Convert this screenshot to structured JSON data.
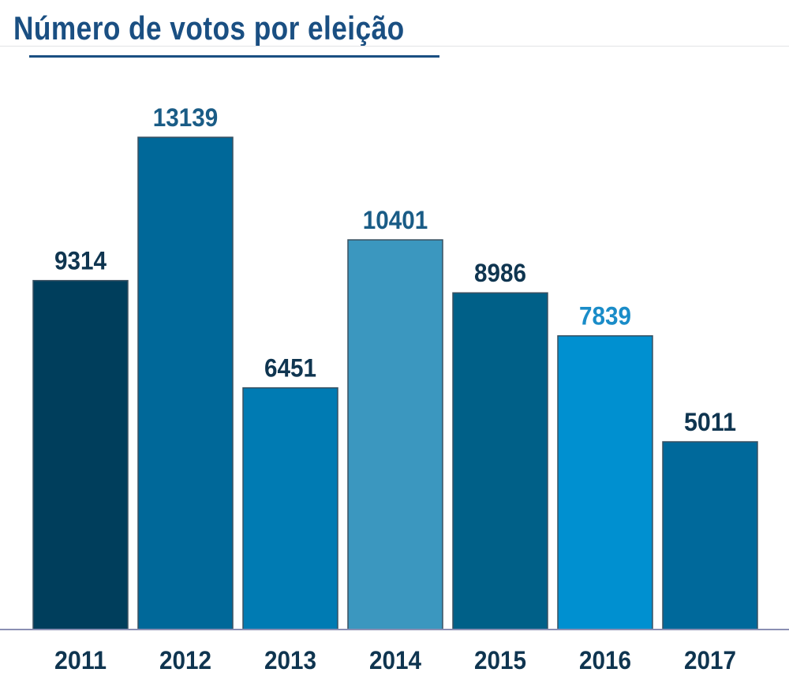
{
  "chart_data": {
    "type": "bar",
    "title": "Número de votos por eleição",
    "xlabel": "",
    "ylabel": "",
    "categories": [
      "2011",
      "2012",
      "2013",
      "2014",
      "2015",
      "2016",
      "2017"
    ],
    "values": [
      9314,
      13139,
      6451,
      10401,
      8986,
      7839,
      5011
    ],
    "ylim": [
      0,
      13139
    ],
    "grid": false,
    "legend": "none",
    "data_labels": true,
    "bar_colors": [
      "#003e5c",
      "#006899",
      "#007bb3",
      "#3b97bf",
      "#006088",
      "#0090d0",
      "#00699b"
    ],
    "label_colors": [
      "#0f3550",
      "#1a5c86",
      "#0f3550",
      "#1a5c86",
      "#0f3550",
      "#1a8cc8",
      "#0f3550"
    ]
  },
  "colors": {
    "title": "#1a4f82",
    "axis": "#8a8fb3",
    "bar_stroke": "#3a5060"
  }
}
